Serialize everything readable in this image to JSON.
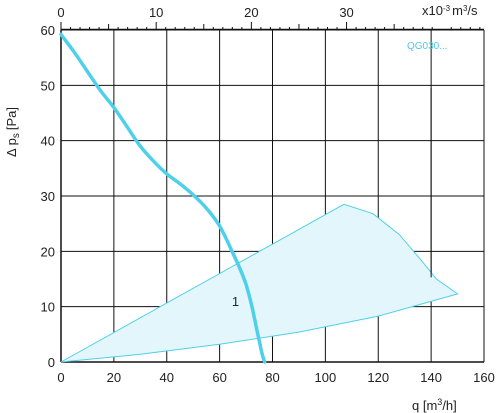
{
  "chart_data": {
    "type": "line",
    "title": "",
    "xlabel": "q [m ³/h]",
    "ylabel": "Δ p s [Pa]",
    "ylabel_main": "Δ p",
    "ylabel_sub": "s",
    "ylabel_unit": "[Pa]",
    "xlabel_main": "q [m",
    "xlabel_sup": "3",
    "xlabel_unit": "/h]",
    "xlim": [
      0,
      160
    ],
    "ylim": [
      0,
      60
    ],
    "x_ticks": [
      0,
      20,
      40,
      60,
      80,
      100,
      120,
      140,
      160
    ],
    "y_ticks": [
      0,
      10,
      20,
      30,
      40,
      50,
      60
    ],
    "secondary_x_ticks": [
      0,
      10,
      20,
      30
    ],
    "secondary_xlim": [
      0,
      44.44
    ],
    "secondary_xlabel_main": "x10",
    "secondary_xlabel_exp": "-3",
    "secondary_xlabel_unit": "m",
    "secondary_xlabel_unit_sup": "3",
    "secondary_xlabel_tail": "/s",
    "grid": true,
    "series": [
      {
        "name": "1",
        "color": "#4fd0ea",
        "x": [
          0,
          5,
          10,
          15,
          20,
          25,
          30,
          35,
          40,
          45,
          50,
          55,
          60,
          65,
          68,
          70,
          72,
          73,
          74,
          75,
          76,
          77
        ],
        "y": [
          59.2,
          56,
          52.5,
          49,
          46,
          42.5,
          39,
          36.3,
          34,
          32.2,
          30.2,
          27.8,
          24.6,
          19.7,
          16.5,
          14,
          10.5,
          8.3,
          6,
          3.8,
          1.6,
          0
        ]
      }
    ],
    "operating_region": {
      "name": "QG030...",
      "color": "#4fd0ea",
      "fill": "#e3f6fb",
      "outline": [
        [
          0,
          0
        ],
        [
          107,
          28.5
        ],
        [
          118,
          26.8
        ],
        [
          128,
          23
        ],
        [
          136,
          18.5
        ],
        [
          142,
          15
        ],
        [
          150,
          12.3
        ],
        [
          120,
          8.3
        ],
        [
          90,
          5.4
        ],
        [
          60,
          3.2
        ],
        [
          30,
          1.4
        ],
        [
          0,
          0
        ]
      ]
    },
    "annotations": [
      {
        "text": "1",
        "x": 66,
        "y": 11
      }
    ]
  }
}
